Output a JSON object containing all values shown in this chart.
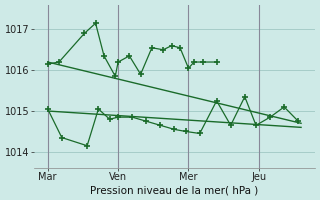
{
  "bg_color": "#ceeae7",
  "grid_color": "#a0c8c4",
  "line_color": "#1a6b2a",
  "sep_color": "#888899",
  "xlabel": "Pression niveau de la mer( hPa )",
  "xtick_labels": [
    "Mar",
    "Ven",
    "Mer",
    "Jeu"
  ],
  "xtick_positions": [
    0.5,
    3.0,
    5.5,
    8.0
  ],
  "vline_positions": [
    0.5,
    3.0,
    5.5,
    8.0
  ],
  "ylim": [
    1013.6,
    1017.6
  ],
  "yticks": [
    1014,
    1015,
    1016,
    1017
  ],
  "xlim": [
    0.0,
    10.0
  ],
  "series1_x": [
    0.5,
    0.9,
    1.8,
    2.2,
    2.5,
    2.9,
    3.0,
    3.4,
    3.8,
    4.2,
    4.6,
    4.9,
    5.2,
    5.5,
    5.7,
    6.0,
    6.5
  ],
  "series1_y": [
    1016.15,
    1016.2,
    1016.9,
    1017.15,
    1016.35,
    1015.85,
    1016.2,
    1016.35,
    1015.9,
    1016.55,
    1016.5,
    1016.6,
    1016.55,
    1016.05,
    1016.2,
    1016.2,
    1016.2
  ],
  "series2_x": [
    0.5,
    1.0,
    1.9,
    2.3,
    2.7,
    3.0,
    3.5,
    4.0,
    4.5,
    5.0,
    5.4,
    5.9,
    6.5,
    7.0,
    7.5,
    7.9,
    8.4,
    8.9,
    9.4
  ],
  "series2_y": [
    1015.05,
    1014.35,
    1014.15,
    1015.05,
    1014.8,
    1014.85,
    1014.85,
    1014.75,
    1014.65,
    1014.55,
    1014.5,
    1014.45,
    1015.25,
    1014.65,
    1015.35,
    1014.65,
    1014.85,
    1015.1,
    1014.75
  ],
  "trend1_x": [
    0.5,
    9.5
  ],
  "trend1_y": [
    1016.2,
    1014.7
  ],
  "trend2_x": [
    0.5,
    9.5
  ],
  "trend2_y": [
    1015.0,
    1014.6
  ],
  "figsize": [
    3.2,
    2.0
  ],
  "dpi": 100
}
